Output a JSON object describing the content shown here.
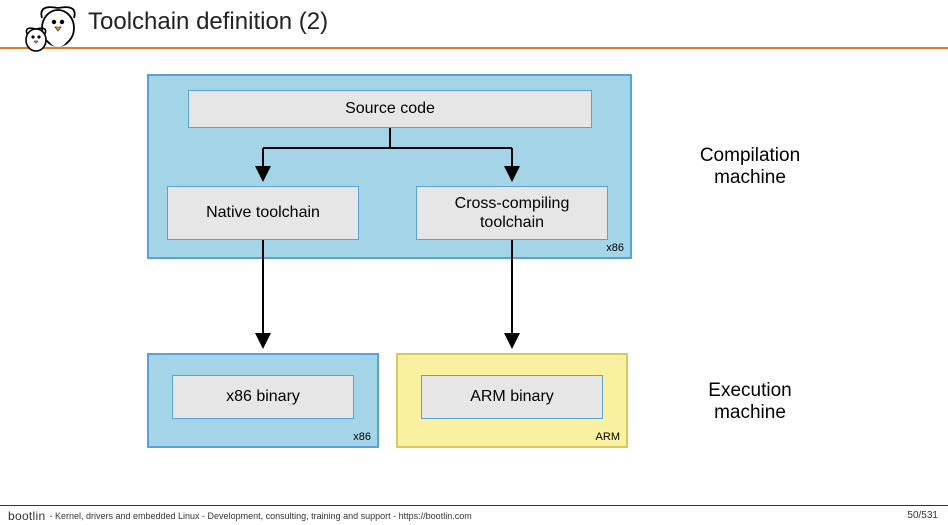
{
  "title": "Toolchain definition (2)",
  "accent_color": "#e87722",
  "side_labels": {
    "compilation": "Compilation machine",
    "execution": "Execution machine"
  },
  "containers": {
    "compilation": {
      "bg": "#a3d4e8",
      "border": "#5aa1d8",
      "label": "x86"
    },
    "exec_x86": {
      "bg": "#a3d4e8",
      "border": "#5aa1d8",
      "label": "x86"
    },
    "exec_arm": {
      "bg": "#f9f0a0",
      "border": "#d6c95f",
      "label": "ARM"
    }
  },
  "nodes": {
    "source": "Source code",
    "native": "Native toolchain",
    "cross": "Cross-compiling toolchain",
    "x86bin": "x86 binary",
    "armbin": "ARM binary"
  },
  "footer": {
    "brand": "bootlin",
    "text": "- Kernel, drivers and embedded Linux - Development, consulting, training and support -  https://bootlin.com",
    "page": "50/531"
  }
}
